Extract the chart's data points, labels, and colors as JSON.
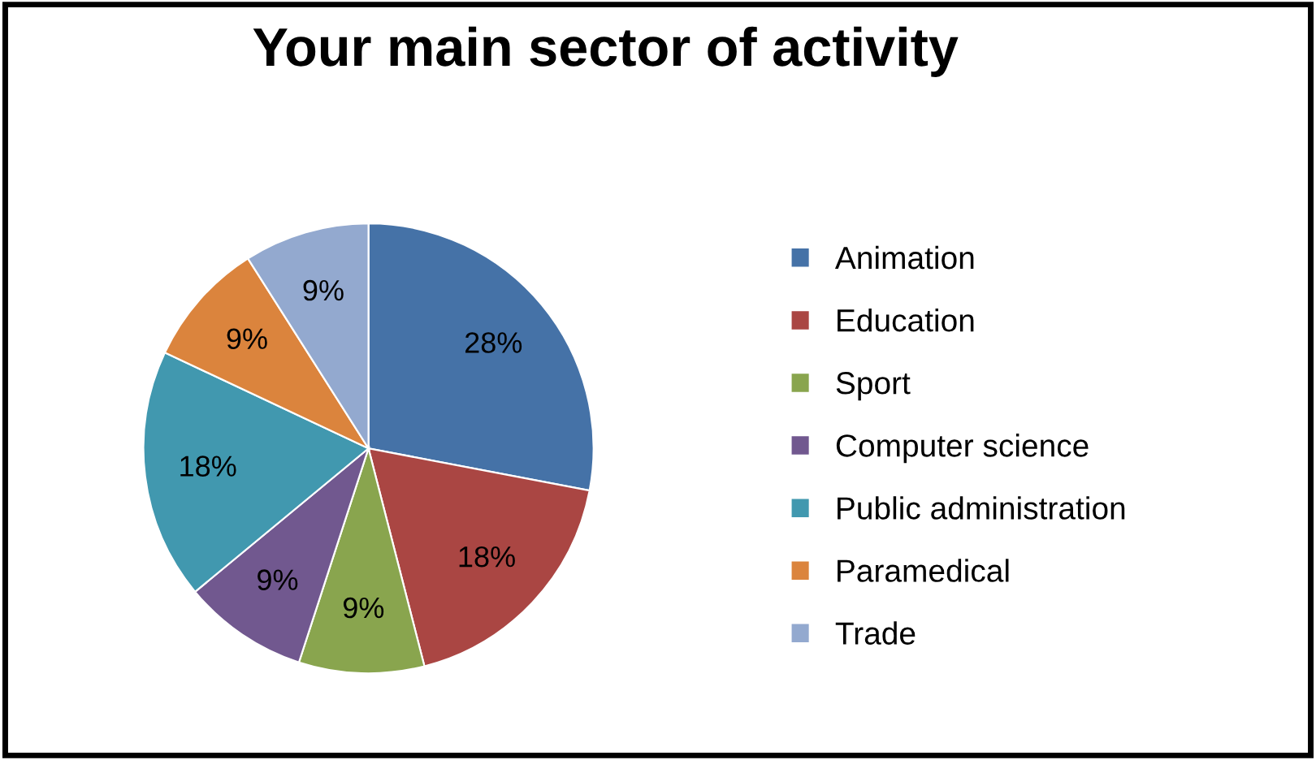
{
  "chart_data": {
    "type": "pie",
    "title": "Your main sector of activity",
    "categories": [
      "Animation",
      "Education",
      "Sport",
      "Computer science",
      "Public administration",
      "Paramedical",
      "Trade"
    ],
    "values": [
      28,
      18,
      9,
      9,
      18,
      9,
      9
    ],
    "value_labels": [
      "28%",
      "18%",
      "9%",
      "9%",
      "18%",
      "9%",
      "9%"
    ],
    "colors": [
      "#4572a7",
      "#aa4643",
      "#89a54e",
      "#71588f",
      "#4198af",
      "#db843d",
      "#93a9cf"
    ],
    "legend": "right"
  }
}
